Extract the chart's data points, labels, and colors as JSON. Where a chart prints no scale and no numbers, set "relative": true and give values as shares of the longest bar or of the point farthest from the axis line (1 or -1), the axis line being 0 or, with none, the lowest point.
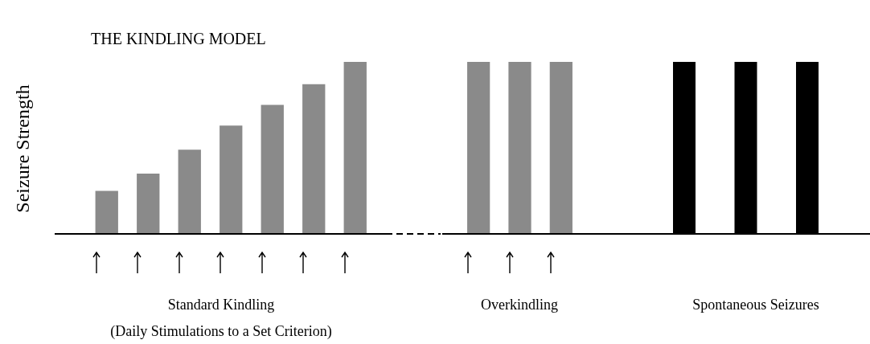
{
  "chart_data": [
    {
      "type": "bar",
      "title": "THE KINDLING MODEL",
      "ylabel": "Seizure Strength",
      "relative": true,
      "categories": [
        null,
        null,
        null,
        null,
        null,
        null,
        null
      ],
      "values": [
        0.25,
        0.35,
        0.49,
        0.63,
        0.75,
        0.87,
        1
      ],
      "color": "#8a8a8a",
      "annotations": [
        "Standard Kindling",
        "(Daily Stimulations to a Set Criterion)"
      ],
      "legend": false
    },
    {
      "type": "bar",
      "relative": true,
      "categories": [
        null,
        null,
        null
      ],
      "values": [
        1,
        1,
        1
      ],
      "color": "#8a8a8a",
      "annotations": [
        "Overkindling"
      ],
      "legend": false
    },
    {
      "type": "bar",
      "relative": true,
      "categories": [
        null,
        null,
        null
      ],
      "values": [
        1,
        1,
        1
      ],
      "color": "#000000",
      "annotations": [
        "Spontaneous Seizures"
      ],
      "legend": false
    }
  ]
}
